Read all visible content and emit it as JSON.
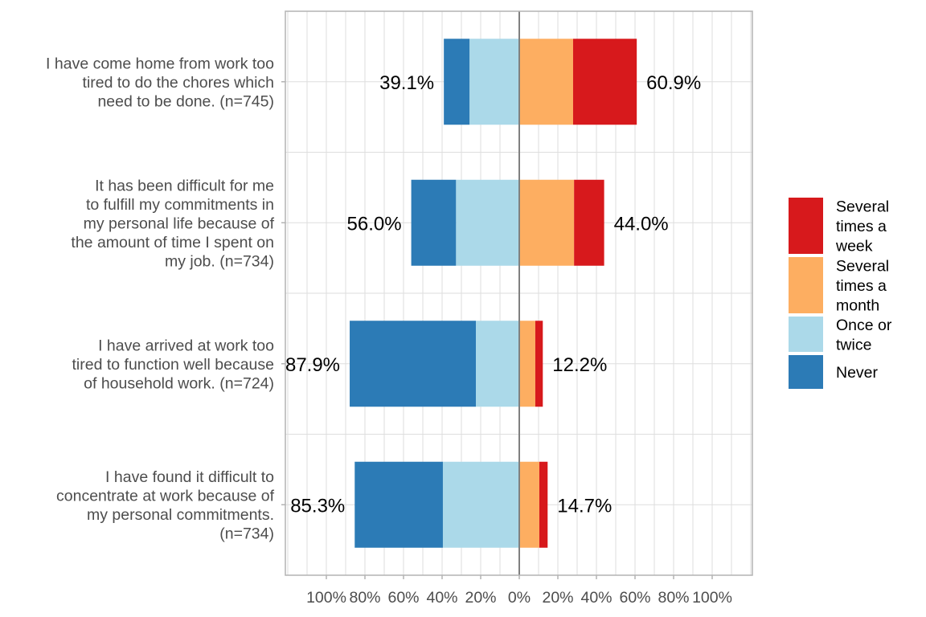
{
  "chart_data": {
    "type": "bar",
    "orientation": "horizontal",
    "stacked": "diverging",
    "title": "",
    "xlabel": "",
    "ylabel": "",
    "xlim": [
      -120,
      120
    ],
    "x_ticks": [
      -100,
      -80,
      -60,
      -40,
      -20,
      0,
      20,
      40,
      60,
      80,
      100
    ],
    "x_tick_labels": [
      "100%",
      "80%",
      "60%",
      "40%",
      "20%",
      "0%",
      "20%",
      "40%",
      "60%",
      "80%",
      "100%"
    ],
    "grid": true,
    "legend_position": "right",
    "categories": [
      [
        "I have come home from work too",
        "tired to do the chores which",
        "need to be done. (n=745)"
      ],
      [
        "It has been difficult for me",
        "to fulfill my commitments in",
        "my personal life because of",
        "the amount of time I spent on",
        "my job. (n=734)"
      ],
      [
        "I have arrived at work too",
        "tired to function well because",
        "of household work. (n=724)"
      ],
      [
        "I have found it difficult to",
        "concentrate at work because of",
        "my personal commitments.",
        "(n=734)"
      ]
    ],
    "series": [
      {
        "name": "Never",
        "side": "negative",
        "color": "#2c7bb6",
        "values": [
          13.3,
          23.2,
          65.4,
          45.7
        ]
      },
      {
        "name": "Once or twice",
        "side": "negative",
        "color": "#abd9e9",
        "values": [
          25.8,
          32.8,
          22.5,
          39.6
        ]
      },
      {
        "name": "Several times a month",
        "side": "positive",
        "color": "#fdae61",
        "values": [
          27.9,
          28.4,
          8.3,
          10.4
        ]
      },
      {
        "name": "Several times a week",
        "side": "positive",
        "color": "#d7191c",
        "values": [
          33.0,
          15.6,
          3.9,
          4.3
        ]
      }
    ],
    "left_totals": [
      "39.1%",
      "56.0%",
      "87.9%",
      "85.3%"
    ],
    "right_totals": [
      "60.9%",
      "44.0%",
      "12.2%",
      "14.7%"
    ],
    "legend": [
      {
        "lines": [
          "Several",
          "times a",
          "week"
        ],
        "color": "#d7191c"
      },
      {
        "lines": [
          "Several",
          "times a",
          "month"
        ],
        "color": "#fdae61"
      },
      {
        "lines": [
          "Once or",
          "twice"
        ],
        "color": "#abd9e9"
      },
      {
        "lines": [
          "Never"
        ],
        "color": "#2c7bb6"
      }
    ]
  }
}
